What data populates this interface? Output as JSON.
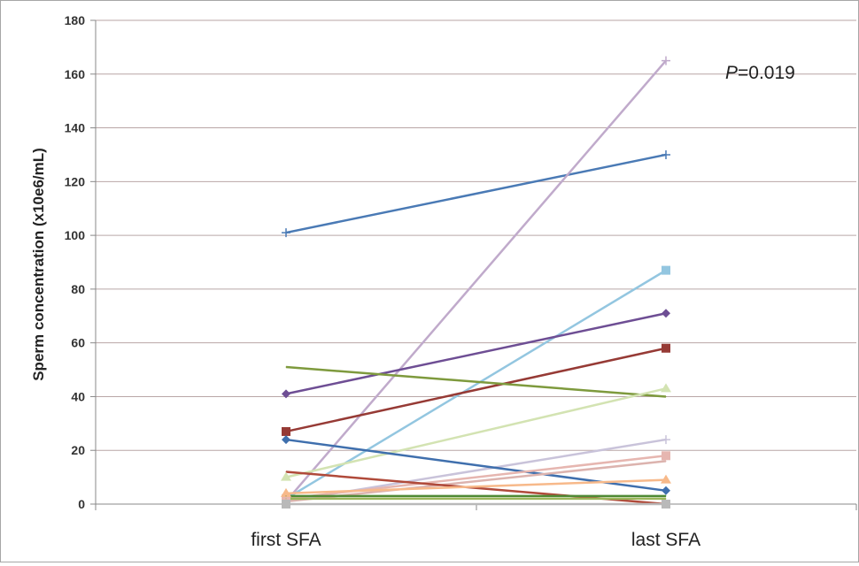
{
  "chart_data": {
    "type": "line",
    "title": "",
    "xlabel": "",
    "ylabel": "Sperm concentration (x10e6/mL)",
    "categories": [
      "first SFA",
      "last SFA"
    ],
    "ylim": [
      0,
      180
    ],
    "yticks": [
      0,
      20,
      40,
      60,
      80,
      100,
      120,
      140,
      160,
      180
    ],
    "grid": true,
    "legend": "none",
    "annotation": {
      "italic": "P",
      "text": "=0.019"
    },
    "series": [
      {
        "values": [
          101,
          130
        ],
        "color": "#4a7ab5",
        "marker": "plus"
      },
      {
        "values": [
          1,
          165
        ],
        "color": "#c0aacb",
        "marker": "plus"
      },
      {
        "values": [
          2,
          87
        ],
        "color": "#93c6e0",
        "marker": "square"
      },
      {
        "values": [
          41,
          71
        ],
        "color": "#6e4e94",
        "marker": "diamond"
      },
      {
        "values": [
          27,
          58
        ],
        "color": "#963a35",
        "marker": "square"
      },
      {
        "values": [
          51,
          40
        ],
        "color": "#7e9a3d",
        "marker": "none"
      },
      {
        "values": [
          10,
          43
        ],
        "color": "#d3e3b2",
        "marker": "triangle"
      },
      {
        "values": [
          1,
          24
        ],
        "color": "#c9c3da",
        "marker": "plus"
      },
      {
        "values": [
          24,
          5
        ],
        "color": "#3f6fad",
        "marker": "diamond"
      },
      {
        "values": [
          2,
          18
        ],
        "color": "#e6b6b0",
        "marker": "square"
      },
      {
        "values": [
          1,
          16
        ],
        "color": "#dcb3ae",
        "marker": "none"
      },
      {
        "values": [
          12,
          0
        ],
        "color": "#b04a3a",
        "marker": "none"
      },
      {
        "values": [
          4,
          9
        ],
        "color": "#f7b98a",
        "marker": "triangle"
      },
      {
        "values": [
          3,
          3
        ],
        "color": "#4f8a35",
        "marker": "none"
      },
      {
        "values": [
          2,
          2
        ],
        "color": "#9bb65a",
        "marker": "none"
      },
      {
        "values": [
          0,
          0
        ],
        "color": "#b9b9b9",
        "marker": "square"
      }
    ]
  }
}
